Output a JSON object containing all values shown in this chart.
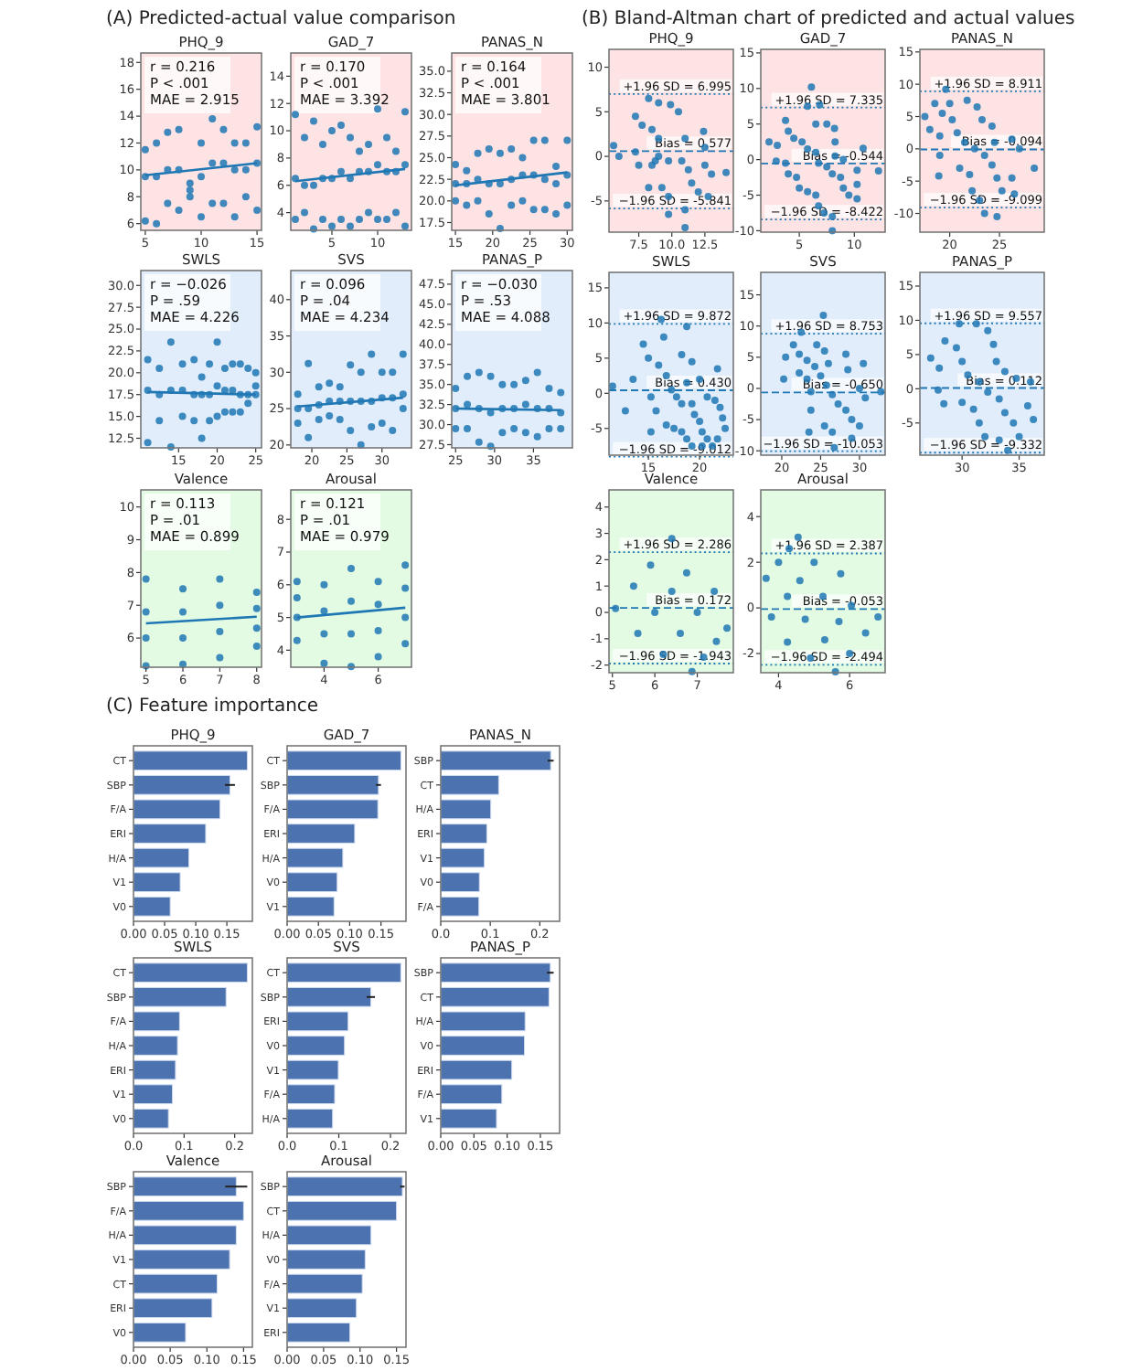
{
  "chart_data": [
    {
      "type": "scatter",
      "subtitle": "(A) Predicted-actual value comparison",
      "title": "PHQ_9",
      "xlim": [
        4.6,
        15.4
      ],
      "ylim": [
        5.5,
        18.7
      ],
      "xticks": [
        5,
        10,
        15
      ],
      "yticks": [
        6,
        8,
        10,
        12,
        14,
        16,
        18
      ],
      "annotations": [
        "r = 0.216",
        "P < .001",
        "MAE = 2.915"
      ],
      "series": [
        {
          "type": "scatter",
          "marker": "circle",
          "color": "#1f77b4",
          "x": [
            5,
            5,
            5,
            6,
            6,
            6,
            7,
            7,
            7,
            8,
            8,
            8,
            9,
            9,
            9,
            10,
            10,
            10,
            11,
            11,
            11,
            12,
            12,
            12,
            13,
            13,
            13,
            14,
            14,
            14,
            15,
            15,
            15
          ],
          "values": [
            6.2,
            9.5,
            11.5,
            6.0,
            9.5,
            12.0,
            7.5,
            10.0,
            12.8,
            7.0,
            10.0,
            13.0,
            8.0,
            8.5,
            9.0,
            6.5,
            9.5,
            12.0,
            7.5,
            10.5,
            13.8,
            7.5,
            10.5,
            13.0,
            6.5,
            10.0,
            12.0,
            8.0,
            10.0,
            12.0,
            7.0,
            10.5,
            13.2
          ]
        },
        {
          "type": "line",
          "color": "#1f77b4",
          "x": [
            5,
            15
          ],
          "values": [
            9.6,
            10.5
          ]
        }
      ]
    },
    {
      "type": "scatter",
      "title": "GAD_7",
      "xlim": [
        0.5,
        13.7
      ],
      "ylim": [
        2.7,
        15.7
      ],
      "xticks": [
        5,
        10
      ],
      "yticks": [
        4,
        6,
        8,
        10,
        12,
        14
      ],
      "annotations": [
        "r = 0.170",
        "P < .001",
        "MAE = 3.392"
      ],
      "series": [
        {
          "type": "scatter",
          "marker": "circle",
          "color": "#1f77b4",
          "x": [
            1,
            1,
            1,
            2,
            2,
            2,
            3,
            3,
            3,
            4,
            4,
            4,
            5,
            5,
            5,
            6,
            6,
            6,
            7,
            7,
            7,
            8,
            8,
            8,
            9,
            9,
            9,
            10,
            10,
            10,
            11,
            11,
            11,
            12,
            12,
            12,
            13,
            13,
            13
          ],
          "values": [
            3.5,
            6.5,
            11.2,
            4.0,
            6.0,
            9.5,
            2.8,
            6.0,
            10.7,
            3.5,
            6.5,
            9.0,
            3.0,
            6.5,
            10.0,
            3.5,
            7.0,
            10.4,
            3.0,
            6.5,
            9.5,
            3.5,
            7.0,
            8.5,
            4.0,
            7.0,
            9.0,
            3.5,
            7.5,
            11.6,
            3.5,
            7.0,
            9.5,
            4.0,
            7.0,
            8.5,
            3.0,
            7.5,
            11.4
          ]
        },
        {
          "type": "line",
          "color": "#1f77b4",
          "x": [
            1,
            13
          ],
          "values": [
            6.3,
            7.2
          ]
        }
      ]
    },
    {
      "type": "scatter",
      "title": "PANAS_N",
      "xlim": [
        14.5,
        30.7
      ],
      "ylim": [
        16.6,
        37.1
      ],
      "xticks": [
        15,
        20,
        25,
        30
      ],
      "yticks": [
        17.5,
        {
          "value": 20,
          "label": "20.0"
        },
        22.5,
        {
          "value": 25,
          "label": "25.0"
        },
        27.5,
        {
          "value": 30,
          "label": "30.0"
        },
        32.5,
        {
          "value": 35,
          "label": "35.0"
        }
      ],
      "annotations": [
        "r = 0.164",
        "P < .001",
        "MAE = 3.801"
      ],
      "series": [
        {
          "type": "scatter",
          "marker": "circle",
          "color": "#1f77b4",
          "x": [
            15,
            15,
            15,
            16.5,
            16.5,
            16.5,
            18,
            18,
            18,
            19.5,
            19.5,
            19.5,
            21,
            21,
            21,
            22.5,
            22.5,
            22.5,
            24,
            24,
            24,
            25.5,
            25.5,
            25.5,
            27,
            27,
            27,
            28.5,
            28.5,
            28.5,
            30,
            30,
            30
          ],
          "values": [
            20,
            22,
            24.2,
            19.5,
            22,
            23.5,
            20,
            22.5,
            25.5,
            18.5,
            22,
            26,
            16.8,
            22,
            25.5,
            19.5,
            22.5,
            26,
            20,
            23,
            25,
            19,
            23,
            27,
            19,
            22.5,
            27,
            18.5,
            22,
            24,
            19.5,
            23,
            27
          ]
        },
        {
          "type": "line",
          "color": "#1f77b4",
          "x": [
            15,
            30
          ],
          "values": [
            21.8,
            23.3
          ]
        }
      ]
    },
    {
      "type": "scatter",
      "title": "SWLS",
      "xlim": [
        10.1,
        25.75
      ],
      "ylim": [
        11.4,
        31.7
      ],
      "xticks": [
        15,
        20,
        25
      ],
      "yticks": [
        12.5,
        {
          "value": 15,
          "label": "15.0"
        },
        17.5,
        {
          "value": 20,
          "label": "20.0"
        },
        22.5,
        {
          "value": 25,
          "label": "25.0"
        },
        27.5,
        {
          "value": 30,
          "label": "30.0"
        }
      ],
      "annotations": [
        "r = −0.026",
        "P = .59",
        "MAE = 4.226"
      ],
      "series": [
        {
          "type": "scatter",
          "marker": "circle",
          "color": "#1f77b4",
          "x": [
            11,
            11,
            11,
            12.5,
            12.5,
            12.5,
            14,
            14,
            14,
            15.5,
            15.5,
            15.5,
            17,
            17,
            17,
            18,
            18,
            18,
            19,
            19,
            19,
            20,
            20,
            20,
            21,
            21,
            21,
            22,
            22,
            22,
            23,
            23,
            23,
            24,
            24,
            24,
            25,
            25,
            25
          ],
          "values": [
            12,
            18,
            21.5,
            14.5,
            17.5,
            20.5,
            11.5,
            18,
            23.5,
            15,
            18,
            21,
            14.5,
            17.5,
            21.5,
            12.5,
            17.5,
            19.5,
            14.5,
            17.5,
            21,
            15,
            18.5,
            23.5,
            15.5,
            18,
            20.5,
            15.5,
            18,
            21,
            15.5,
            17.5,
            21,
            16.5,
            17.5,
            20.5,
            17.5,
            18.5,
            20
          ]
        },
        {
          "type": "line",
          "color": "#1f77b4",
          "x": [
            11,
            25
          ],
          "values": [
            17.8,
            17.5
          ]
        }
      ]
    },
    {
      "type": "scatter",
      "title": "SVS",
      "xlim": [
        17,
        34.2
      ],
      "ylim": [
        19.6,
        44
      ],
      "xticks": [
        20,
        25,
        30
      ],
      "yticks": [
        20,
        25,
        30,
        35,
        40
      ],
      "annotations": [
        "r = 0.096",
        "P = .04",
        "MAE = 4.234"
      ],
      "series": [
        {
          "type": "scatter",
          "marker": "circle",
          "color": "#1f77b4",
          "x": [
            18,
            18,
            18,
            19.5,
            19.5,
            19.5,
            21,
            21,
            21,
            22.5,
            22.5,
            22.5,
            24,
            24,
            24,
            25.5,
            25.5,
            25.5,
            27,
            27,
            27,
            28.5,
            28.5,
            28.5,
            30,
            30,
            30,
            31.5,
            31.5,
            31.5,
            33,
            33,
            33
          ],
          "values": [
            23,
            25,
            27,
            21,
            25,
            31.2,
            23.5,
            25.5,
            28,
            24,
            26,
            28.5,
            23.5,
            26,
            28,
            22,
            26,
            31,
            20,
            26,
            30,
            22.5,
            26,
            32.5,
            23,
            26.5,
            30,
            22,
            26.5,
            30,
            25,
            27,
            32.5
          ]
        },
        {
          "type": "line",
          "color": "#1f77b4",
          "x": [
            18,
            33
          ],
          "values": [
            25.3,
            26.5
          ]
        }
      ]
    },
    {
      "type": "scatter",
      "title": "PANAS_P",
      "xlim": [
        24.5,
        40
      ],
      "ylim": [
        27.1,
        49.2
      ],
      "xticks": [
        25,
        30,
        35
      ],
      "yticks": [
        27.5,
        {
          "value": 30,
          "label": "30.0"
        },
        32.5,
        {
          "value": 35,
          "label": "35.0"
        },
        37.5,
        {
          "value": 40,
          "label": "40.0"
        },
        42.5,
        {
          "value": 45,
          "label": "45.0"
        },
        47.5
      ],
      "annotations": [
        "r = −0.030",
        "P = .53",
        "MAE = 4.088"
      ],
      "series": [
        {
          "type": "scatter",
          "marker": "circle",
          "color": "#1f77b4",
          "x": [
            25,
            25,
            25,
            26.5,
            26.5,
            26.5,
            28,
            28,
            28,
            29.5,
            29.5,
            29.5,
            31,
            31,
            31,
            32.5,
            32.5,
            32.5,
            34,
            34,
            34,
            35.5,
            35.5,
            35.5,
            37,
            37,
            37,
            38.5,
            38.5,
            38.5
          ],
          "values": [
            29.5,
            32,
            34.5,
            29.5,
            32.5,
            36,
            27.8,
            32,
            36.5,
            27.3,
            31.5,
            36,
            29,
            32,
            35,
            29.5,
            32,
            35,
            29,
            32.5,
            35.5,
            28.5,
            32,
            36.5,
            29.5,
            32,
            34.5,
            29.5,
            31.5,
            34
          ]
        },
        {
          "type": "line",
          "color": "#1f77b4",
          "x": [
            25,
            38.5
          ],
          "values": [
            32.0,
            31.8
          ]
        }
      ]
    },
    {
      "type": "scatter",
      "title": "Valence",
      "xlim": [
        4.86,
        8.13
      ],
      "ylim": [
        5.11,
        10.52
      ],
      "xticks": [
        5,
        6,
        7,
        8
      ],
      "yticks": [
        6,
        7,
        8,
        9,
        10
      ],
      "annotations": [
        "r = 0.113",
        "P = .01",
        "MAE = 0.899"
      ],
      "series": [
        {
          "type": "scatter",
          "marker": "circle",
          "color": "#1f77b4",
          "x": [
            5,
            5,
            5,
            5,
            6,
            6,
            6,
            6,
            7,
            7,
            7,
            7,
            8,
            8,
            8,
            8
          ],
          "values": [
            5.15,
            6,
            6.8,
            7.8,
            5.2,
            6,
            6.8,
            7.5,
            5.4,
            6.2,
            7,
            7.8,
            5.75,
            6.3,
            6.9,
            7.4
          ]
        },
        {
          "type": "line",
          "color": "#1f77b4",
          "x": [
            5,
            8
          ],
          "values": [
            6.45,
            6.65
          ]
        }
      ]
    },
    {
      "type": "scatter",
      "title": "Arousal",
      "xlim": [
        2.77,
        7.23
      ],
      "ylim": [
        3.48,
        8.9
      ],
      "xticks": [
        4,
        6
      ],
      "yticks": [
        4,
        5,
        6,
        7,
        8
      ],
      "annotations": [
        "r = 0.121",
        "P = .01",
        "MAE = 0.979"
      ],
      "series": [
        {
          "type": "scatter",
          "marker": "circle",
          "color": "#1f77b4",
          "x": [
            3,
            3,
            3,
            3,
            4,
            4,
            4,
            4,
            5,
            5,
            5,
            5,
            6,
            6,
            6,
            6,
            7,
            7,
            7,
            7
          ],
          "values": [
            4.3,
            5,
            5.6,
            6.1,
            3.6,
            4.5,
            5.2,
            6,
            3.5,
            4.5,
            5.5,
            6.5,
            3.8,
            4.6,
            5.4,
            6.1,
            4.2,
            5,
            5.9,
            6.6
          ]
        },
        {
          "type": "line",
          "color": "#1f77b4",
          "x": [
            3,
            7
          ],
          "values": [
            5.0,
            5.3
          ]
        }
      ]
    },
    {
      "type": "scatter",
      "subtitle": "(B) Bland-Altman chart of predicted and actual values",
      "title": "PHQ_9",
      "marker": "circle",
      "xlim": [
        5.25,
        14.65
      ],
      "ylim": [
        -8.5,
        12
      ],
      "xticks": [
        7.5,
        {
          "value": 10,
          "label": "10.0"
        },
        12.5
      ],
      "yticks": [
        -5,
        0,
        5,
        10
      ],
      "series": [
        {
          "color": "#1f77b4",
          "x": [
            5.6,
            7.25,
            8.25,
            6,
            7.75,
            9,
            7.25,
            8.5,
            9.9,
            7.5,
            9,
            10.5,
            8.5,
            8.75,
            9,
            8.25,
            9.75,
            11,
            9.25,
            10.75,
            12.4,
            9.75,
            11.25,
            12.5,
            9.75,
            11.5,
            12.5,
            11,
            12,
            13,
            11,
            12.75,
            14.1
          ],
          "values": [
            1.2,
            4.5,
            6.5,
            0,
            3.5,
            6,
            0.5,
            3,
            5.8,
            -1,
            2,
            5,
            -1,
            -0.5,
            0,
            -3.5,
            -0.5,
            2,
            -3.5,
            -0.5,
            2.8,
            -4.5,
            -1.5,
            1,
            -6.5,
            -3,
            -1,
            -6,
            -4,
            -2,
            -8,
            -4.5,
            -1.8
          ]
        }
      ],
      "ref_lines": [
        {
          "axis": "y",
          "value": 0.577,
          "label": "Bias = 0.577",
          "line_style": "dashed",
          "color": "#1f77b4"
        },
        {
          "axis": "y",
          "value": 6.995,
          "label": "+1.96 SD = 6.995",
          "line_style": "dotted",
          "color": "#1f77b4"
        },
        {
          "axis": "y",
          "value": -5.841,
          "label": "−1.96 SD = -5.841",
          "line_style": "dotted",
          "color": "#1f77b4"
        }
      ]
    },
    {
      "type": "scatter",
      "title": "GAD_7",
      "marker": "circle",
      "xlim": [
        1.5,
        12.8
      ],
      "ylim": [
        -10.2,
        15.5
      ],
      "xticks": [
        5,
        10
      ],
      "yticks": [
        -10,
        -5,
        0,
        5,
        10,
        15
      ],
      "series": [
        {
          "color": "#1f77b4",
          "x": [
            2.25,
            3.75,
            6.1,
            3,
            4,
            5.75,
            2.9,
            4.5,
            6.85,
            3.75,
            5.25,
            6.5,
            4,
            5.75,
            7.5,
            4.75,
            6.5,
            8.2,
            5,
            6.75,
            8.25,
            5.75,
            7.5,
            8.25,
            6.5,
            8,
            9,
            6.75,
            8.75,
            10.8,
            7.25,
            9,
            10.25,
            8,
            9.5,
            10.25,
            8,
            10.25,
            12.2
          ],
          "values": [
            2.5,
            5.5,
            10.2,
            2,
            4,
            7.5,
            -0.2,
            3,
            7.7,
            -0.5,
            2.5,
            5,
            -2,
            1.5,
            5,
            -2.5,
            1,
            4.4,
            -4,
            -0.5,
            2.5,
            -4.5,
            -1,
            0.5,
            -5,
            -2,
            0,
            -6.5,
            -2.5,
            1.6,
            -7.5,
            -4,
            -1.5,
            -8,
            -5,
            -3.5,
            -10,
            -5.5,
            -1.6
          ]
        }
      ],
      "ref_lines": [
        {
          "axis": "y",
          "value": -0.544,
          "label": "Bias = -0.544",
          "line_style": "dashed",
          "color": "#1f77b4"
        },
        {
          "axis": "y",
          "value": 7.335,
          "label": "+1.96 SD = 7.335",
          "line_style": "dotted",
          "color": "#1f77b4"
        },
        {
          "axis": "y",
          "value": -8.422,
          "label": "−1.96 SD = -8.422",
          "line_style": "dotted",
          "color": "#1f77b4"
        }
      ]
    },
    {
      "type": "scatter",
      "title": "PANAS_N",
      "marker": "circle",
      "xlim": [
        17,
        29.5
      ],
      "ylim": [
        -12.9,
        15.4
      ],
      "xticks": [
        20,
        25
      ],
      "yticks": [
        -10,
        -5,
        0,
        5,
        10,
        15
      ],
      "series": [
        {
          "color": "#1f77b4",
          "x": [
            17.5,
            18.5,
            19.6,
            18,
            19.25,
            20,
            19,
            20.25,
            21.75,
            19,
            20.75,
            22.75,
            18.9,
            21.5,
            23.25,
            21,
            22.5,
            24.25,
            22,
            23.5,
            24.5,
            22.25,
            24.25,
            26.25,
            23,
            24.75,
            27,
            23.5,
            25.25,
            26.25,
            24.75,
            26.5,
            28.5
          ],
          "values": [
            5,
            7,
            9.2,
            3,
            5.5,
            7,
            2,
            4.5,
            7.5,
            -1,
            2.5,
            6.5,
            -4.2,
            1,
            4.5,
            -3,
            0,
            3.5,
            -4,
            -1,
            1,
            -6.5,
            -2.5,
            1.5,
            -8,
            -4.5,
            0,
            -10,
            -6.5,
            -4.5,
            -10.5,
            -7,
            -3
          ]
        }
      ],
      "ref_lines": [
        {
          "axis": "y",
          "value": -0.094,
          "label": "Bias = -0.094",
          "line_style": "dashed",
          "color": "#1f77b4"
        },
        {
          "axis": "y",
          "value": 8.911,
          "label": "+1.96 SD = 8.911",
          "line_style": "dotted",
          "color": "#1f77b4"
        },
        {
          "axis": "y",
          "value": -9.099,
          "label": "−1.96 SD = -9.099",
          "line_style": "dotted",
          "color": "#1f77b4"
        }
      ]
    },
    {
      "type": "scatter",
      "title": "SWLS",
      "marker": "circle",
      "xlim": [
        11.15,
        23.3
      ],
      "ylim": [
        -8.8,
        17.2
      ],
      "xticks": [
        15,
        20
      ],
      "yticks": [
        -5,
        0,
        5,
        10,
        15
      ],
      "series": [
        {
          "color": "#1f77b4",
          "x": [
            11.5,
            14.5,
            16.25,
            13.5,
            15,
            16.5,
            12.75,
            16,
            18.75,
            15.25,
            16.75,
            18.25,
            15.75,
            17.25,
            19.25,
            15.25,
            17.75,
            18.75,
            16.75,
            18.25,
            20,
            17.5,
            19.25,
            21.75,
            18.25,
            19.5,
            20.75,
            18.75,
            20,
            21.5,
            19.25,
            20.25,
            22,
            20.25,
            20.75,
            22.25,
            21.25,
            21.75,
            22.5
          ],
          "values": [
            1,
            7,
            10.5,
            2,
            5,
            8,
            -2.5,
            4,
            9.5,
            -0.5,
            2.5,
            5.5,
            -2.5,
            0.5,
            4.5,
            -5.5,
            -0.5,
            1.5,
            -4.5,
            -1.5,
            2,
            -5,
            -1.5,
            3.5,
            -5.5,
            -3,
            -0.5,
            -6.5,
            -4,
            -1,
            -7.5,
            -5.5,
            -2,
            -7.5,
            -6.5,
            -3.5,
            -7.5,
            -6.5,
            -5
          ]
        }
      ],
      "ref_lines": [
        {
          "axis": "y",
          "value": 0.43,
          "label": "Bias = 0.430",
          "line_style": "dashed",
          "color": "#1f77b4"
        },
        {
          "axis": "y",
          "value": 9.872,
          "label": "+1.96 SD = 9.872",
          "line_style": "dotted",
          "color": "#1f77b4"
        },
        {
          "axis": "y",
          "value": -9.012,
          "label": "−1.96 SD = -9.012",
          "line_style": "dotted",
          "color": "#1f77b4"
        }
      ]
    },
    {
      "type": "scatter",
      "title": "SVS",
      "marker": "circle",
      "xlim": [
        17.3,
        33.3
      ],
      "ylim": [
        -10.7,
        18.6
      ],
      "xticks": [
        20,
        25,
        30
      ],
      "yticks": [
        -10,
        -5,
        0,
        5,
        10,
        15
      ],
      "series": [
        {
          "color": "#1f77b4",
          "x": [
            20.5,
            21.5,
            22.5,
            20.25,
            22.25,
            25.35,
            22.25,
            23.25,
            24.5,
            23.25,
            24.25,
            25.5,
            23.75,
            25,
            26,
            23.75,
            25.75,
            28.25,
            23.5,
            26.5,
            28.5,
            25.5,
            27.25,
            30.5,
            26.5,
            28.25,
            30,
            26.75,
            29,
            30.75,
            29,
            30,
            32.75
          ],
          "values": [
            5,
            7,
            9,
            1.5,
            5.5,
            11.7,
            2.5,
            4.5,
            7,
            1.5,
            3.5,
            6,
            -0.5,
            2,
            4,
            -3.5,
            0.5,
            5.5,
            -7,
            -1,
            3,
            -6,
            -2.5,
            4,
            -7,
            -3.5,
            0,
            -9.5,
            -5,
            -1.5,
            -8,
            -6,
            -0.5
          ]
        }
      ],
      "ref_lines": [
        {
          "axis": "y",
          "value": -0.65,
          "label": "Bias = -0.650",
          "line_style": "dashed",
          "color": "#1f77b4"
        },
        {
          "axis": "y",
          "value": 8.753,
          "label": "+1.96 SD = 8.753",
          "line_style": "dotted",
          "color": "#1f77b4"
        },
        {
          "axis": "y",
          "value": -10.053,
          "label": "−1.96 SD = -10.053",
          "line_style": "dotted",
          "color": "#1f77b4"
        }
      ]
    },
    {
      "type": "scatter",
      "title": "PANAS_P",
      "marker": "circle",
      "xlim": [
        26.3,
        37.2
      ],
      "ylim": [
        -9.7,
        17
      ],
      "xticks": [
        30,
        35
      ],
      "yticks": [
        -5,
        0,
        5,
        10,
        15
      ],
      "series": [
        {
          "color": "#1f77b4",
          "x": [
            27.25,
            28.5,
            29.75,
            28,
            29.5,
            31.25,
            27.9,
            30,
            32.25,
            28.4,
            30.5,
            32.75,
            30,
            31.5,
            33,
            31,
            32.25,
            33.75,
            31.5,
            33.25,
            34.75,
            32,
            33.75,
            36,
            33.25,
            34.5,
            35.75,
            34,
            35,
            36.25
          ],
          "values": [
            4.5,
            7,
            9.5,
            3,
            6,
            9.5,
            -0.2,
            4,
            8.5,
            -2.2,
            2,
            6.5,
            -2,
            1,
            4,
            -3,
            -0.5,
            2.5,
            -5,
            -1.5,
            1.5,
            -7,
            -3.5,
            1,
            -7.5,
            -5,
            -2.5,
            -9,
            -7,
            -4.5
          ]
        }
      ],
      "ref_lines": [
        {
          "axis": "y",
          "value": 0.112,
          "label": "Bias = 0.112",
          "line_style": "dashed",
          "color": "#1f77b4"
        },
        {
          "axis": "y",
          "value": 9.557,
          "label": "+1.96 SD = 9.557",
          "line_style": "dotted",
          "color": "#1f77b4"
        },
        {
          "axis": "y",
          "value": -9.332,
          "label": "−1.96 SD = -9.332",
          "line_style": "dotted",
          "color": "#1f77b4"
        }
      ]
    },
    {
      "type": "scatter",
      "title": "Valence",
      "marker": "circle",
      "xlim": [
        4.92,
        7.85
      ],
      "ylim": [
        -2.29,
        4.65
      ],
      "xticks": [
        5,
        6,
        7
      ],
      "yticks": [
        -2,
        -1,
        0,
        1,
        2,
        3,
        4
      ],
      "series": [
        {
          "color": "#1f77b4",
          "x": [
            5.075,
            5.5,
            5.9,
            6.4,
            5.6,
            6,
            6.4,
            6.75,
            6.2,
            6.6,
            7,
            7.4,
            6.875,
            7.15,
            7.45,
            7.7
          ],
          "values": [
            0.15,
            1,
            1.8,
            2.8,
            -0.8,
            0,
            0.8,
            1.5,
            -1.6,
            -0.8,
            0,
            0.8,
            -2.25,
            -1.7,
            -1.1,
            -0.6
          ]
        }
      ],
      "ref_lines": [
        {
          "axis": "y",
          "value": 0.172,
          "label": "Bias = 0.172",
          "line_style": "dashed",
          "color": "#1f77b4"
        },
        {
          "axis": "y",
          "value": 2.286,
          "label": "+1.96 SD = 2.286",
          "line_style": "dotted",
          "color": "#1f77b4"
        },
        {
          "axis": "y",
          "value": -1.943,
          "label": "−1.96 SD = -1.943",
          "line_style": "dotted",
          "color": "#1f77b4"
        }
      ]
    },
    {
      "type": "scatter",
      "title": "Arousal",
      "marker": "circle",
      "xlim": [
        3.5,
        7.0
      ],
      "ylim": [
        -2.84,
        5.17
      ],
      "xticks": [
        4,
        6
      ],
      "yticks": [
        -2,
        0,
        2,
        4
      ],
      "series": [
        {
          "color": "#1f77b4",
          "x": [
            3.65,
            4,
            4.3,
            4.55,
            3.8,
            4.25,
            4.6,
            5,
            4.25,
            4.75,
            5.25,
            5.75,
            4.9,
            5.3,
            5.7,
            6.05,
            5.6,
            6,
            6.45,
            6.8
          ],
          "values": [
            1.3,
            2,
            2.6,
            3.1,
            -0.4,
            0.5,
            1.2,
            2,
            -1.5,
            -0.5,
            0.5,
            1.5,
            -2.2,
            -1.4,
            -0.6,
            0.1,
            -2.8,
            -2,
            -1.1,
            -0.4
          ]
        }
      ],
      "ref_lines": [
        {
          "axis": "y",
          "value": -0.053,
          "label": "Bias = -0.053",
          "line_style": "dashed",
          "color": "#1f77b4"
        },
        {
          "axis": "y",
          "value": 2.387,
          "label": "+1.96 SD = 2.387",
          "line_style": "dotted",
          "color": "#1f77b4"
        },
        {
          "axis": "y",
          "value": -2.494,
          "label": "−1.96 SD = -2.494",
          "line_style": "dotted",
          "color": "#1f77b4"
        }
      ]
    },
    {
      "type": "bar",
      "subtitle": "(C) Feature importance",
      "title": "PHQ_9",
      "orientation": "horizontal",
      "color": "#4c72b0",
      "categories": [
        "CT",
        "SBP",
        "F/A",
        "ERI",
        "H/A",
        "V1",
        "V0"
      ],
      "values": [
        0.183,
        0.155,
        0.139,
        0.116,
        0.089,
        0.075,
        0.059
      ],
      "errors": [
        null,
        0.008,
        null,
        null,
        null,
        null,
        null
      ],
      "xlim": [
        0,
        0.191
      ],
      "xticks": [
        {
          "value": 0,
          "label": "0.00"
        },
        0.05,
        {
          "value": 0.1,
          "label": "0.10"
        },
        0.15
      ]
    },
    {
      "type": "bar",
      "title": "GAD_7",
      "orientation": "horizontal",
      "color": "#4c72b0",
      "categories": [
        "CT",
        "SBP",
        "F/A",
        "ERI",
        "H/A",
        "V0",
        "V1"
      ],
      "values": [
        0.182,
        0.146,
        0.145,
        0.108,
        0.089,
        0.08,
        0.075
      ],
      "errors": [
        null,
        0.004,
        null,
        null,
        null,
        null,
        null
      ],
      "xlim": [
        0,
        0.19
      ],
      "xticks": [
        {
          "value": 0,
          "label": "0.00"
        },
        0.05,
        {
          "value": 0.1,
          "label": "0.10"
        },
        0.15
      ]
    },
    {
      "type": "bar",
      "title": "PANAS_N",
      "orientation": "horizontal",
      "color": "#4c72b0",
      "categories": [
        "SBP",
        "CT",
        "H/A",
        "ERI",
        "V1",
        "V0",
        "F/A"
      ],
      "values": [
        0.222,
        0.117,
        0.101,
        0.093,
        0.088,
        0.078,
        0.077
      ],
      "errors": [
        0.006,
        null,
        null,
        null,
        null,
        null,
        null
      ],
      "xlim": [
        0,
        0.24
      ],
      "xticks": [
        {
          "value": 0,
          "label": "0.0"
        },
        0.1,
        0.2
      ]
    },
    {
      "type": "bar",
      "title": "SWLS",
      "orientation": "horizontal",
      "color": "#4c72b0",
      "categories": [
        "CT",
        "SBP",
        "F/A",
        "H/A",
        "ERI",
        "V1",
        "V0"
      ],
      "values": [
        0.225,
        0.183,
        0.091,
        0.087,
        0.083,
        0.077,
        0.069
      ],
      "xlim": [
        0,
        0.235
      ],
      "xticks": [
        {
          "value": 0,
          "label": "0.0"
        },
        0.1,
        0.2
      ]
    },
    {
      "type": "bar",
      "title": "SVS",
      "orientation": "horizontal",
      "color": "#4c72b0",
      "categories": [
        "CT",
        "SBP",
        "ERI",
        "V0",
        "V1",
        "F/A",
        "H/A"
      ],
      "values": [
        0.22,
        0.162,
        0.118,
        0.111,
        0.099,
        0.092,
        0.088
      ],
      "errors": [
        null,
        0.008,
        null,
        null,
        null,
        null,
        null
      ],
      "xlim": [
        0,
        0.23
      ],
      "xticks": [
        {
          "value": 0,
          "label": "0.0"
        },
        0.1,
        0.2
      ]
    },
    {
      "type": "bar",
      "title": "PANAS_P",
      "orientation": "horizontal",
      "color": "#4c72b0",
      "categories": [
        "SBP",
        "CT",
        "H/A",
        "V0",
        "ERI",
        "F/A",
        "V1"
      ],
      "values": [
        0.165,
        0.163,
        0.127,
        0.126,
        0.107,
        0.092,
        0.084
      ],
      "errors": [
        0.005,
        null,
        null,
        null,
        null,
        null,
        null
      ],
      "xlim": [
        0,
        0.179
      ],
      "xticks": [
        {
          "value": 0,
          "label": "0.00"
        },
        0.05,
        {
          "value": 0.1,
          "label": "0.10"
        },
        0.15
      ]
    },
    {
      "type": "bar",
      "title": "Valence",
      "orientation": "horizontal",
      "color": "#4c72b0",
      "categories": [
        "SBP",
        "F/A",
        "H/A",
        "V1",
        "CT",
        "ERI",
        "V0"
      ],
      "values": [
        0.14,
        0.15,
        0.14,
        0.131,
        0.114,
        0.107,
        0.071
      ],
      "errors": [
        0.015,
        null,
        null,
        null,
        null,
        null,
        null
      ],
      "xlim": [
        0,
        0.162
      ],
      "xticks": [
        {
          "value": 0,
          "label": "0.00"
        },
        0.05,
        {
          "value": 0.1,
          "label": "0.10"
        },
        0.15
      ]
    },
    {
      "type": "bar",
      "title": "Arousal",
      "orientation": "horizontal",
      "color": "#4c72b0",
      "categories": [
        "SBP",
        "CT",
        "H/A",
        "V0",
        "F/A",
        "V1",
        "ERI"
      ],
      "values": [
        0.158,
        0.15,
        0.115,
        0.107,
        0.103,
        0.095,
        0.086
      ],
      "errors": [
        0.003,
        null,
        null,
        null,
        null,
        null,
        null
      ],
      "xlim": [
        0,
        0.163
      ],
      "xticks": [
        {
          "value": 0,
          "label": "0.00"
        },
        0.05,
        {
          "value": 0.1,
          "label": "0.10"
        },
        0.15
      ]
    }
  ]
}
